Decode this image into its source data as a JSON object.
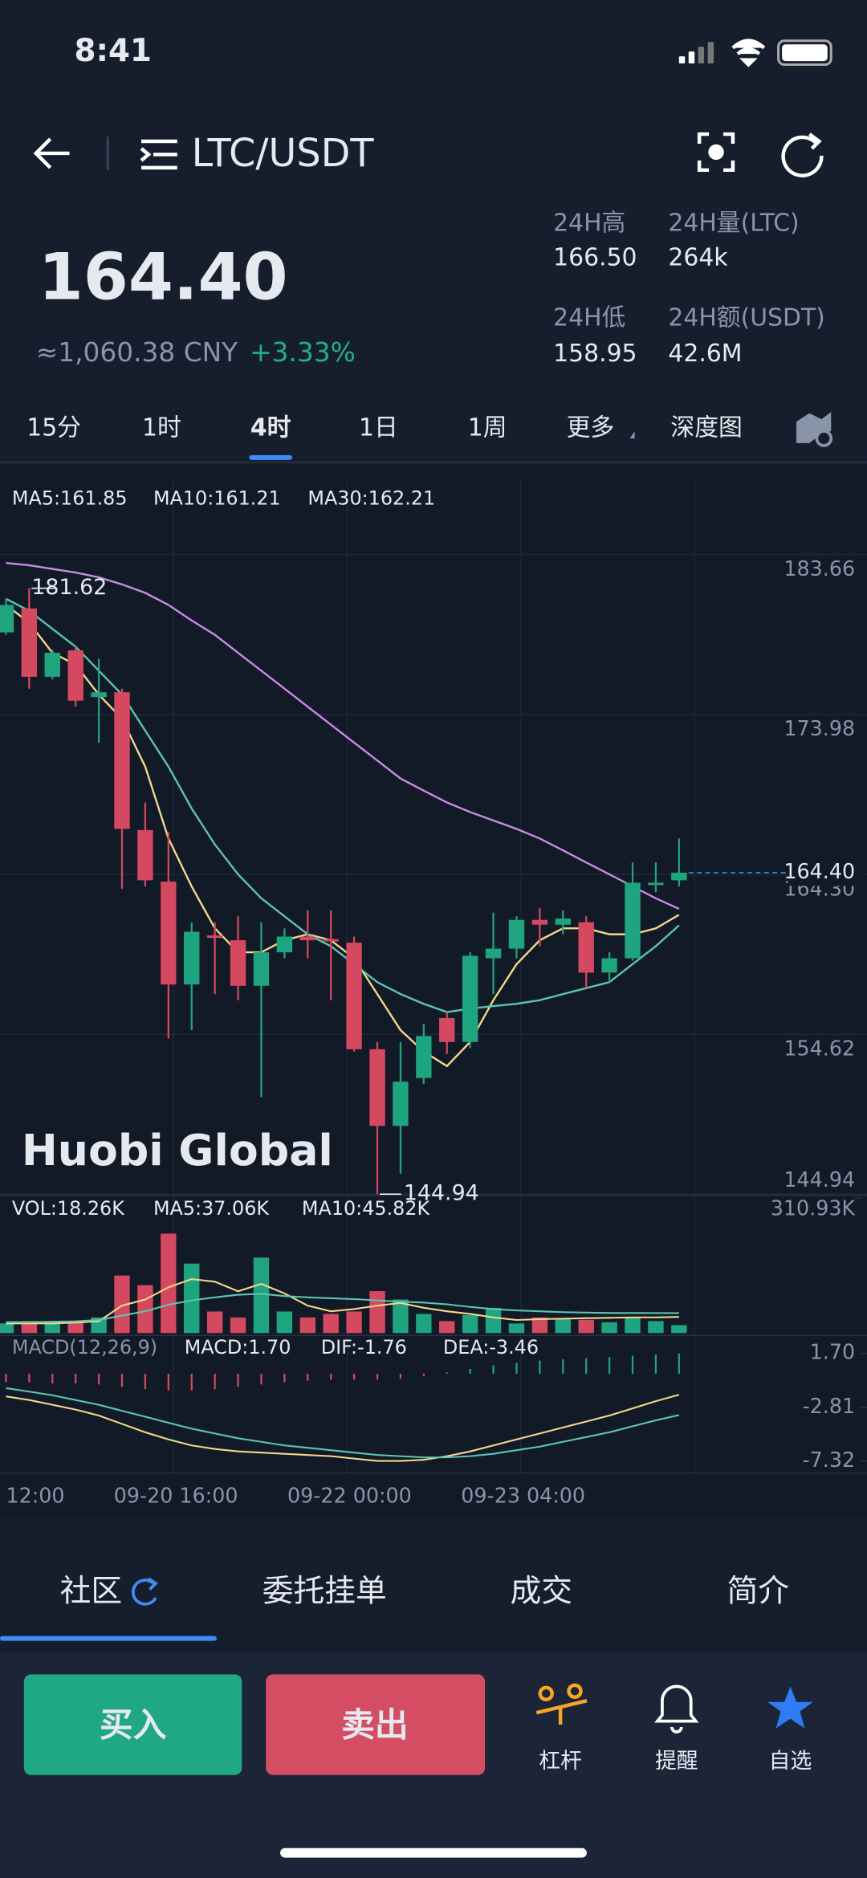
{
  "status_bar": {
    "time": "8:41"
  },
  "header": {
    "pair": "LTC/USDT"
  },
  "price": {
    "last": "164.40",
    "cny": "≈1,060.38 CNY",
    "change": "+3.33%"
  },
  "stats": [
    {
      "label": "24H高",
      "value": "166.50"
    },
    {
      "label": "24H量(LTC)",
      "value": "264k"
    },
    {
      "label": "24H低",
      "value": "158.95"
    },
    {
      "label": "24H额(USDT)",
      "value": "42.6M"
    }
  ],
  "intervals": {
    "items": [
      "15分",
      "1时",
      "4时",
      "1日",
      "1周",
      "更多",
      "深度图"
    ],
    "selected": 2
  },
  "chart_data": {
    "type": "candlestick",
    "watermark": "Huobi Global",
    "open": [
      178.95,
      180.4,
      176.26,
      177.86,
      175.03,
      175.32,
      166.98,
      163.86,
      157.63,
      160.6,
      160.31,
      157.55,
      159.58,
      160.53,
      160.38,
      160.16,
      153.71,
      149.07,
      151.97,
      155.6,
      154.15,
      159.22,
      159.8,
      161.54,
      161.25,
      161.4,
      158.35,
      159.22,
      163.65,
      163.94
    ],
    "high": [
      180.98,
      181.62,
      177.9,
      178.08,
      177.35,
      175.54,
      168.65,
      166.84,
      161.4,
      161.4,
      161.76,
      161.4,
      161.03,
      162.12,
      162.12,
      160.53,
      154.15,
      154.15,
      155.23,
      155.96,
      159.58,
      161.98,
      161.76,
      162.27,
      162.12,
      161.76,
      159.58,
      165.02,
      165.02,
      166.47
    ],
    "low": [
      178.8,
      175.54,
      176.1,
      174.45,
      172.27,
      163.43,
      163.57,
      154.36,
      154.87,
      157.05,
      156.68,
      150.81,
      159.22,
      159.22,
      156.68,
      153.57,
      144.94,
      146.17,
      151.61,
      153.42,
      153.78,
      157.05,
      159.22,
      159.95,
      160.67,
      157.41,
      157.77,
      159.08,
      163.21,
      163.57
    ],
    "close": [
      180.61,
      176.26,
      177.71,
      174.81,
      175.32,
      167.05,
      163.94,
      157.63,
      160.82,
      160.45,
      157.55,
      159.58,
      160.53,
      160.31,
      160.24,
      153.71,
      149.07,
      151.75,
      154.51,
      154.15,
      159.37,
      159.8,
      161.54,
      161.25,
      161.62,
      158.35,
      159.22,
      163.79,
      163.79,
      164.4
    ],
    "colors": {
      "up": "#1fa480",
      "down": "#d4495f"
    },
    "series": [
      {
        "name": "MA5",
        "label": "MA5:161.85",
        "color": "#f3d88b",
        "values": [
          180.61,
          179.53,
          177.71,
          176.99,
          175.18,
          173.72,
          170.82,
          166.47,
          163.57,
          161.03,
          159.58,
          159.58,
          160.31,
          160.67,
          160.31,
          159.22,
          157.05,
          154.87,
          153.57,
          152.69,
          154.15,
          156.68,
          158.86,
          160.31,
          161.03,
          161.03,
          160.67,
          160.67,
          161.03,
          161.85
        ]
      },
      {
        "name": "MA10",
        "label": "MA10:161.21",
        "color": "#5cc6b1",
        "values": [
          180.98,
          180.25,
          179.16,
          178.08,
          176.63,
          175.18,
          173.0,
          170.82,
          168.29,
          166.11,
          164.3,
          162.85,
          161.76,
          160.67,
          159.95,
          158.86,
          157.77,
          157.05,
          156.46,
          155.96,
          156.17,
          156.32,
          156.46,
          156.68,
          157.05,
          157.41,
          157.77,
          158.86,
          159.95,
          161.21
        ]
      },
      {
        "name": "MA30",
        "label": "MA30:162.21",
        "color": "#c98be6",
        "values": [
          183.15,
          183.01,
          182.79,
          182.57,
          182.28,
          181.85,
          181.34,
          180.61,
          179.67,
          178.8,
          177.71,
          176.63,
          175.54,
          174.45,
          173.36,
          172.27,
          171.19,
          170.1,
          169.37,
          168.65,
          168.07,
          167.56,
          167.05,
          166.47,
          165.75,
          165.02,
          164.3,
          163.57,
          162.85,
          162.21
        ]
      }
    ],
    "ylim": [
      144.94,
      183.66
    ],
    "yticks": [
      144.94,
      154.62,
      {
        "value": 164.3,
        "label": "164.30"
      },
      173.98,
      183.66
    ],
    "volume": {
      "label": "VOL:18.26K",
      "values": [
        22.0,
        27.5,
        22.0,
        27.5,
        35.8,
        132.1,
        110.1,
        228.4,
        159.6,
        49.5,
        35.8,
        173.4,
        49.5,
        35.8,
        44.0,
        49.5,
        96.3,
        77.0,
        44.0,
        27.5,
        41.3,
        57.8,
        22.0,
        35.8,
        33.0,
        30.3,
        24.8,
        35.8,
        27.5,
        18.26
      ],
      "series": [
        {
          "name": "MA5",
          "label": "MA5:37.06K",
          "color": "#f3d88b",
          "values": [
            22,
            22,
            22,
            24,
            27,
            63,
            77,
            105,
            124,
            118,
            96,
            113,
            91,
            63,
            50,
            55,
            63,
            69,
            58,
            50,
            44,
            36,
            30,
            32,
            33,
            34,
            35,
            36,
            36,
            37.06
          ]
        },
        {
          "name": "MA10",
          "label": "MA10:45.82K",
          "color": "#5cc6b1",
          "values": [
            25,
            25,
            26,
            27,
            30,
            40,
            50,
            65,
            75,
            82,
            88,
            90,
            85,
            82,
            80,
            78,
            75,
            72,
            70,
            66,
            60,
            55,
            52,
            50,
            48,
            47,
            46,
            46,
            45.9,
            45.82
          ]
        }
      ],
      "ylim": [
        0,
        310.93
      ],
      "yticks": [
        {
          "value": 310.93,
          "label": "310.93K"
        }
      ]
    },
    "macd": {
      "label": "MACD(12,26,9)",
      "hist_label": "MACD:1.70",
      "hist": [
        -0.7,
        -0.7,
        -0.8,
        -0.8,
        -0.9,
        -1.1,
        -1.3,
        -1.4,
        -1.4,
        -1.3,
        -1.1,
        -0.9,
        -0.7,
        -0.6,
        -0.5,
        -0.5,
        -0.5,
        -0.4,
        -0.2,
        0.1,
        0.4,
        0.7,
        0.9,
        1.1,
        1.2,
        1.3,
        1.4,
        1.5,
        1.6,
        1.7
      ],
      "series": [
        {
          "name": "DIF",
          "label": "DIF:-1.76",
          "color": "#f3d88b",
          "values": [
            -1.9,
            -2.2,
            -2.6,
            -3.0,
            -3.5,
            -4.2,
            -4.9,
            -5.5,
            -6.0,
            -6.3,
            -6.5,
            -6.6,
            -6.7,
            -6.8,
            -6.9,
            -7.1,
            -7.3,
            -7.3,
            -7.2,
            -6.9,
            -6.5,
            -6.0,
            -5.5,
            -5.0,
            -4.5,
            -4.0,
            -3.5,
            -2.9,
            -2.3,
            -1.76
          ]
        },
        {
          "name": "DEA",
          "label": "DEA:-3.46",
          "color": "#5cc6b1",
          "values": [
            -1.2,
            -1.5,
            -1.8,
            -2.2,
            -2.6,
            -3.1,
            -3.6,
            -4.1,
            -4.6,
            -5.0,
            -5.4,
            -5.7,
            -6.0,
            -6.2,
            -6.4,
            -6.6,
            -6.8,
            -6.9,
            -7.0,
            -7.0,
            -6.9,
            -6.7,
            -6.4,
            -6.1,
            -5.7,
            -5.3,
            -4.9,
            -4.4,
            -3.9,
            -3.46
          ]
        }
      ],
      "ylim": [
        -7.32,
        1.7
      ],
      "yticks": [
        {
          "value": 1.7,
          "label": "1.70"
        },
        -2.81,
        -7.32
      ]
    },
    "x_labels": [
      "12:00",
      "09-20 16:00",
      "09-22 00:00",
      "09-23 04:00"
    ]
  },
  "tabs": {
    "items": [
      "社区",
      "委托挂单",
      "成交",
      "简介"
    ],
    "selected": 0
  },
  "actions": {
    "buy": "买入",
    "sell": "卖出",
    "items": [
      "杠杆",
      "提醒",
      "自选"
    ]
  }
}
